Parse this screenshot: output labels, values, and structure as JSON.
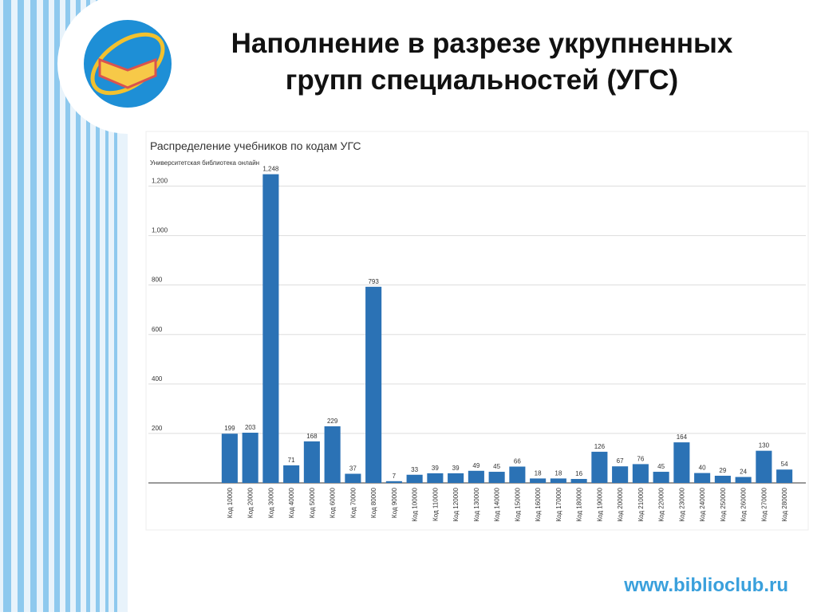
{
  "slide": {
    "title": [
      "Наполнение в разрезе укрупненных",
      "групп специальностей (УГС)"
    ],
    "footer": "www.biblioclub.ru"
  },
  "chart_data": {
    "type": "bar",
    "title": "Распределение учебников по кодам УГС",
    "subtitle": "Университетская библиотека онлайн",
    "categories": [
      "Код 10000",
      "Код 20000",
      "Код 30000",
      "Код 40000",
      "Код 50000",
      "Код 60000",
      "Код 70000",
      "Код 80000",
      "Код 90000",
      "Код 100000",
      "Код 110000",
      "Код 120000",
      "Код 130000",
      "Код 140000",
      "Код 150000",
      "Код 160000",
      "Код 170000",
      "Код 180000",
      "Код 190000",
      "Код 200000",
      "Код 210000",
      "Код 220000",
      "Код 230000",
      "Код 240000",
      "Код 250000",
      "Код 260000",
      "Код 270000",
      "Код 280000"
    ],
    "values": [
      199,
      203,
      1248,
      71,
      168,
      229,
      37,
      793,
      7,
      33,
      39,
      39,
      49,
      45,
      66,
      18,
      18,
      16,
      126,
      67,
      76,
      45,
      164,
      40,
      29,
      24,
      130,
      54
    ],
    "value_labels": [
      "199",
      "203",
      "1,248",
      "71",
      "168",
      "229",
      "37",
      "793",
      "7",
      "33",
      "39",
      "39",
      "49",
      "45",
      "66",
      "18",
      "18",
      "16",
      "126",
      "67",
      "76",
      "45",
      "164",
      "40",
      "29",
      "24",
      "130",
      "54"
    ],
    "color": "#2b72b5",
    "ylim": [
      0,
      1250
    ],
    "yticks": [
      200,
      400,
      600,
      800,
      {
        "value": 1000,
        "label": "1,000"
      },
      {
        "value": 1200,
        "label": "1,200"
      }
    ],
    "grid": true
  }
}
